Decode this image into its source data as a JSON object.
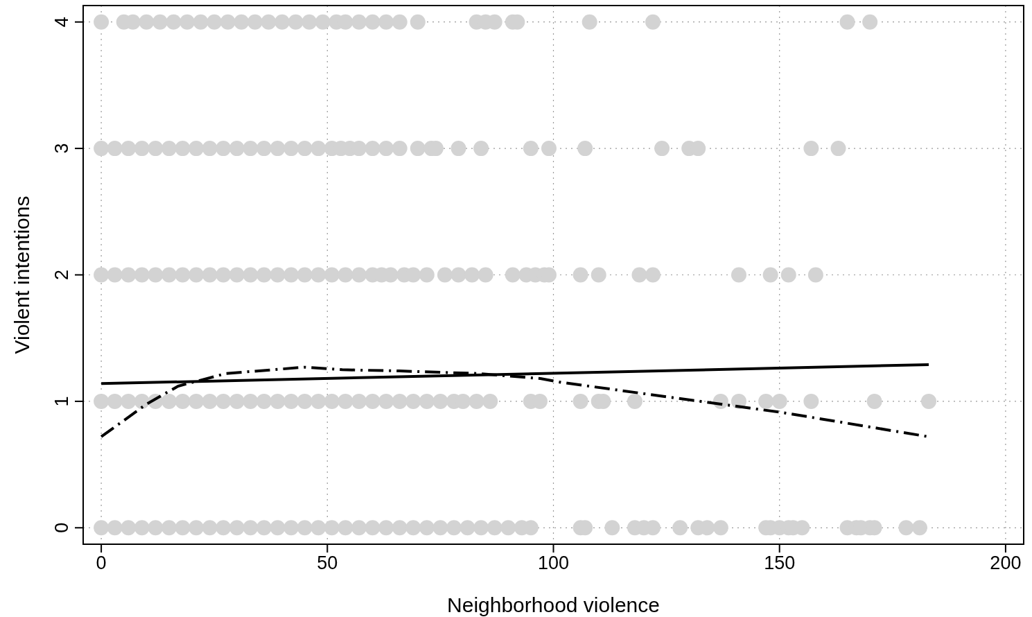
{
  "chart_data": {
    "type": "scatter",
    "xlabel": "Neighborhood violence",
    "ylabel": "Violent intentions",
    "xlim": [
      -4,
      204
    ],
    "ylim": [
      -0.13,
      4.13
    ],
    "xticks": [
      0,
      50,
      100,
      150,
      200
    ],
    "yticks": [
      0,
      1,
      2,
      3,
      4
    ],
    "grid": true,
    "series": [
      {
        "color": "#d3d3d3",
        "marker": "circle",
        "x": [
          0,
          3,
          6,
          9,
          12,
          15,
          18,
          21,
          24,
          27,
          30,
          33,
          36,
          39,
          42,
          45,
          48,
          51,
          54,
          57,
          60,
          63,
          66,
          69,
          72,
          75,
          78,
          81,
          84,
          87,
          90,
          93,
          95,
          106,
          107,
          113,
          118,
          120,
          122,
          128,
          132,
          134,
          137,
          147,
          148,
          150,
          152,
          153,
          155,
          165,
          167,
          168,
          170,
          171,
          178,
          181,
          0,
          3,
          6,
          9,
          12,
          15,
          18,
          21,
          24,
          27,
          30,
          33,
          36,
          39,
          42,
          45,
          48,
          51,
          54,
          57,
          60,
          63,
          66,
          69,
          72,
          75,
          78,
          80,
          83,
          86,
          95,
          97,
          106,
          110,
          111,
          118,
          137,
          141,
          147,
          150,
          157,
          171,
          183,
          0,
          3,
          6,
          9,
          12,
          15,
          18,
          21,
          24,
          27,
          30,
          33,
          36,
          39,
          42,
          45,
          48,
          51,
          54,
          57,
          60,
          62,
          64,
          67,
          69,
          72,
          76,
          79,
          82,
          85,
          91,
          94,
          96,
          98,
          99,
          106,
          110,
          119,
          122,
          141,
          148,
          152,
          158,
          0,
          3,
          6,
          9,
          12,
          15,
          18,
          21,
          24,
          27,
          30,
          33,
          36,
          39,
          42,
          45,
          48,
          51,
          53,
          55,
          57,
          60,
          63,
          66,
          70,
          73,
          74,
          79,
          84,
          95,
          99,
          107,
          124,
          130,
          132,
          157,
          163,
          0,
          5,
          7,
          10,
          13,
          16,
          19,
          22,
          25,
          28,
          31,
          34,
          37,
          40,
          43,
          46,
          49,
          52,
          54,
          57,
          60,
          63,
          66,
          70,
          83,
          85,
          87,
          91,
          92,
          108,
          122,
          165,
          170
        ],
        "values": [
          0,
          0,
          0,
          0,
          0,
          0,
          0,
          0,
          0,
          0,
          0,
          0,
          0,
          0,
          0,
          0,
          0,
          0,
          0,
          0,
          0,
          0,
          0,
          0,
          0,
          0,
          0,
          0,
          0,
          0,
          0,
          0,
          0,
          0,
          0,
          0,
          0,
          0,
          0,
          0,
          0,
          0,
          0,
          0,
          0,
          0,
          0,
          0,
          0,
          0,
          0,
          0,
          0,
          0,
          0,
          0,
          1,
          1,
          1,
          1,
          1,
          1,
          1,
          1,
          1,
          1,
          1,
          1,
          1,
          1,
          1,
          1,
          1,
          1,
          1,
          1,
          1,
          1,
          1,
          1,
          1,
          1,
          1,
          1,
          1,
          1,
          1,
          1,
          1,
          1,
          1,
          1,
          1,
          1,
          1,
          1,
          1,
          1,
          1,
          2,
          2,
          2,
          2,
          2,
          2,
          2,
          2,
          2,
          2,
          2,
          2,
          2,
          2,
          2,
          2,
          2,
          2,
          2,
          2,
          2,
          2,
          2,
          2,
          2,
          2,
          2,
          2,
          2,
          2,
          2,
          2,
          2,
          2,
          2,
          2,
          2,
          2,
          2,
          2,
          2,
          2,
          2,
          3,
          3,
          3,
          3,
          3,
          3,
          3,
          3,
          3,
          3,
          3,
          3,
          3,
          3,
          3,
          3,
          3,
          3,
          3,
          3,
          3,
          3,
          3,
          3,
          3,
          3,
          3,
          3,
          3,
          3,
          3,
          3,
          3,
          3,
          3,
          3,
          3,
          4,
          4,
          4,
          4,
          4,
          4,
          4,
          4,
          4,
          4,
          4,
          4,
          4,
          4,
          4,
          4,
          4,
          4,
          4,
          4,
          4,
          4,
          4,
          4,
          4,
          4,
          4,
          4,
          4,
          4,
          4,
          4,
          4
        ]
      },
      {
        "type": "line",
        "color": "#000000",
        "line_style": "solid",
        "x": [
          0,
          183
        ],
        "values": [
          1.14,
          1.29
        ]
      },
      {
        "type": "line",
        "color": "#000000",
        "line_style": "dashed",
        "x": [
          0,
          10.1,
          17,
          27.6,
          44.9,
          53.3,
          65.9,
          83.2,
          97.1,
          101.7,
          150.9,
          183
        ],
        "values": [
          0.72,
          0.98,
          1.12,
          1.22,
          1.27,
          1.25,
          1.24,
          1.22,
          1.18,
          1.15,
          0.91,
          0.72
        ]
      }
    ]
  }
}
